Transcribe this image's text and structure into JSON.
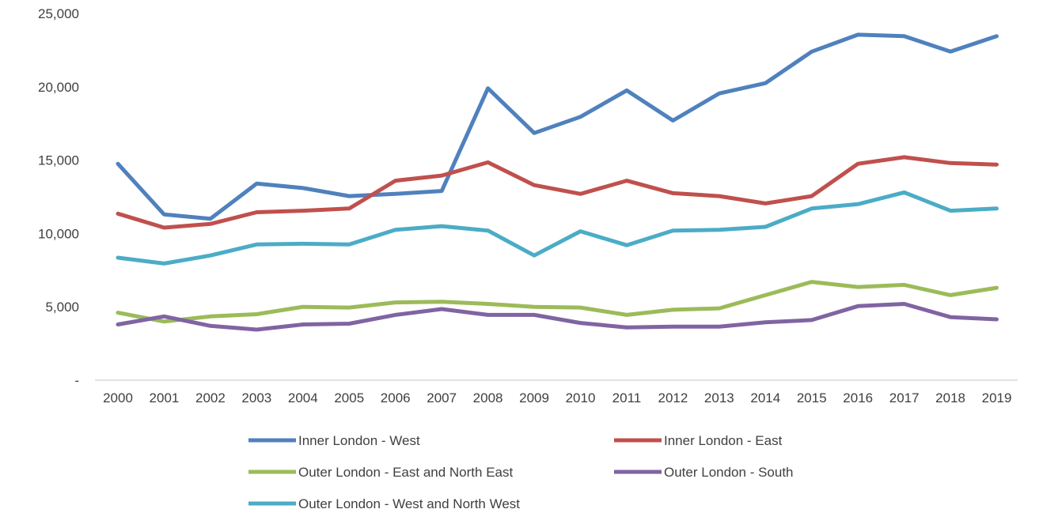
{
  "chart_data": {
    "type": "line",
    "title": "",
    "xlabel": "",
    "ylabel": "",
    "x": [
      "2000",
      "2001",
      "2002",
      "2003",
      "2004",
      "2005",
      "2006",
      "2007",
      "2008",
      "2009",
      "2010",
      "2011",
      "2012",
      "2013",
      "2014",
      "2015",
      "2016",
      "2017",
      "2018",
      "2019"
    ],
    "ylim": [
      0,
      25000
    ],
    "yticks": [
      0,
      5000,
      10000,
      15000,
      20000,
      25000
    ],
    "ytick_labels": [
      "-",
      "5,000",
      "10,000",
      "15,000",
      "20,000",
      "25,000"
    ],
    "grid": false,
    "legend_position": "bottom",
    "series": [
      {
        "name": "Inner London - West",
        "color": "#4F81BD",
        "values": [
          14750,
          11300,
          11000,
          13400,
          13100,
          12550,
          12700,
          12900,
          19900,
          16850,
          17950,
          19750,
          17700,
          19550,
          20250,
          22400,
          23550,
          23450,
          22400,
          23450
        ]
      },
      {
        "name": "Inner London - East",
        "color": "#C0504D",
        "values": [
          11350,
          10400,
          10650,
          11450,
          11550,
          11700,
          13600,
          13950,
          14850,
          13300,
          12700,
          13600,
          12750,
          12550,
          12050,
          12550,
          14750,
          15200,
          14800,
          14700
        ]
      },
      {
        "name": "Outer London - East and North East",
        "color": "#9BBB59",
        "values": [
          4600,
          4000,
          4350,
          4500,
          5000,
          4950,
          5300,
          5350,
          5200,
          5000,
          4950,
          4450,
          4800,
          4900,
          5800,
          6700,
          6350,
          6500,
          5800,
          6300
        ]
      },
      {
        "name": "Outer London - South",
        "color": "#8064A2",
        "values": [
          3800,
          4350,
          3700,
          3450,
          3800,
          3850,
          4450,
          4850,
          4450,
          4450,
          3900,
          3600,
          3650,
          3650,
          3950,
          4100,
          5050,
          5200,
          4300,
          4150
        ]
      },
      {
        "name": "Outer London - West and North West",
        "color": "#4BACC6",
        "values": [
          8350,
          7950,
          8500,
          9250,
          9300,
          9250,
          10250,
          10500,
          10200,
          8500,
          10150,
          9200,
          10200,
          10250,
          10450,
          11700,
          12000,
          12800,
          11550,
          11700
        ]
      }
    ]
  },
  "axis": {
    "color": "#D9D9D9"
  }
}
